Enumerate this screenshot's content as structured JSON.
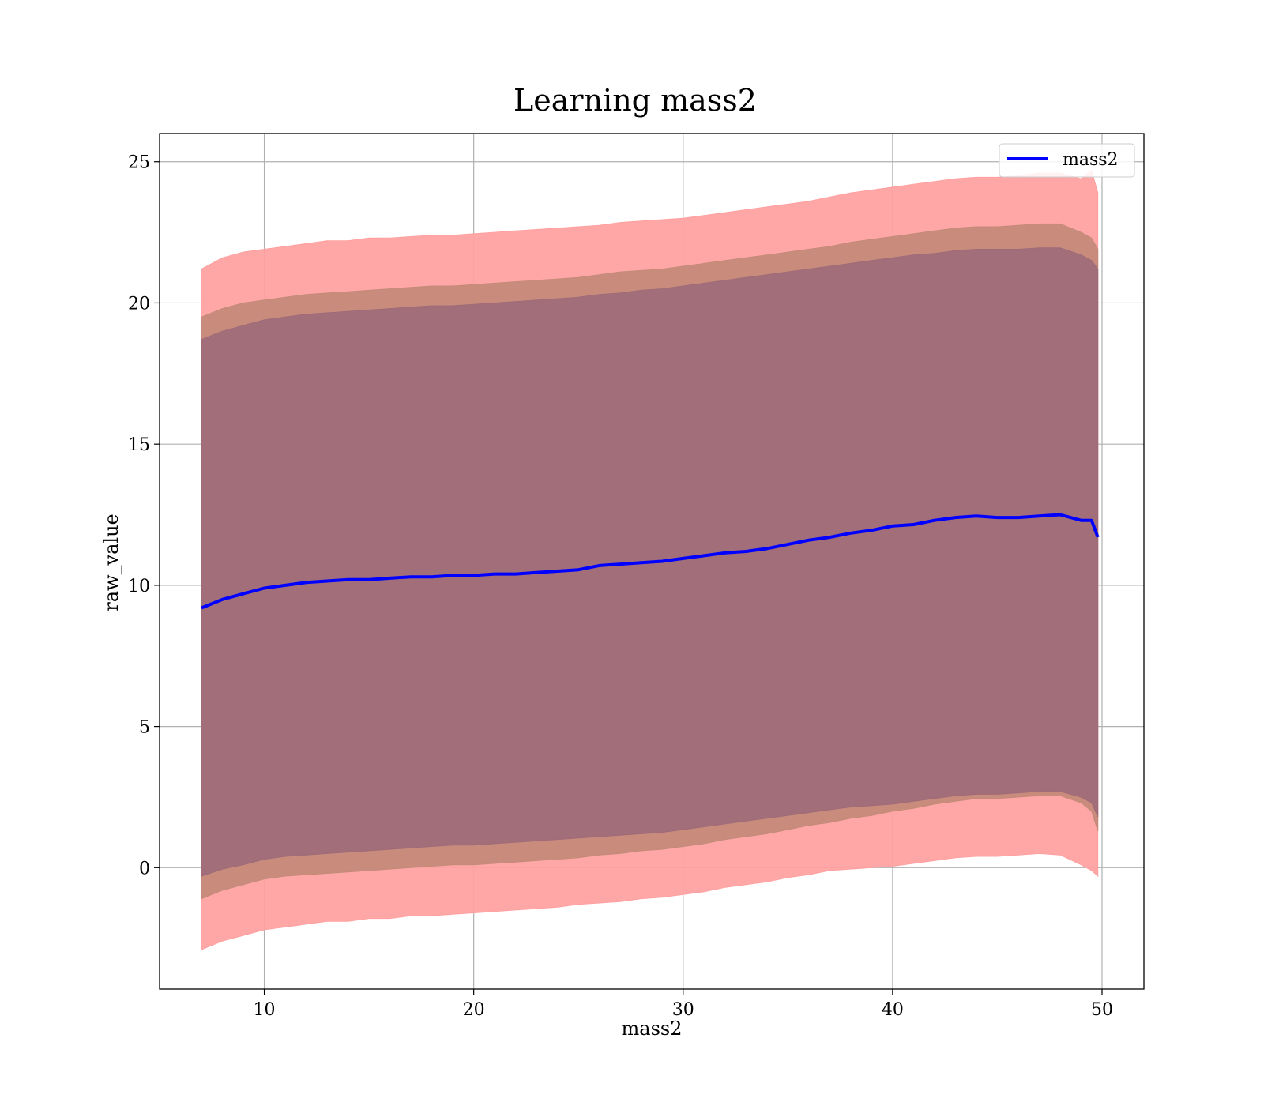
{
  "chart_data": {
    "type": "line",
    "title": "Learning mass2",
    "xlabel": "mass2",
    "ylabel": "raw_value",
    "xlim": [
      5,
      52
    ],
    "ylim": [
      -4.3,
      26
    ],
    "xticks": [
      10,
      20,
      30,
      40,
      50
    ],
    "yticks": [
      0,
      5,
      10,
      15,
      20,
      25
    ],
    "grid": true,
    "legend_position": "top-right",
    "colors": {
      "line": "#0000ff",
      "outer_band": "#ffa0a0",
      "middle_band": "#c48a78",
      "inner_band": "#9e6b78"
    },
    "series": [
      {
        "name": "mass2",
        "x": [
          7,
          8,
          9,
          10,
          11,
          12,
          13,
          14,
          15,
          16,
          17,
          18,
          19,
          20,
          21,
          22,
          23,
          24,
          25,
          26,
          27,
          28,
          29,
          30,
          31,
          32,
          33,
          34,
          35,
          36,
          37,
          38,
          39,
          40,
          41,
          42,
          43,
          44,
          45,
          46,
          47,
          48,
          49,
          49.5,
          49.8
        ],
        "y": [
          9.2,
          9.5,
          9.7,
          9.9,
          10.0,
          10.1,
          10.15,
          10.2,
          10.2,
          10.25,
          10.3,
          10.3,
          10.35,
          10.35,
          10.4,
          10.4,
          10.45,
          10.5,
          10.55,
          10.7,
          10.75,
          10.8,
          10.85,
          10.95,
          11.05,
          11.15,
          11.2,
          11.3,
          11.45,
          11.6,
          11.7,
          11.85,
          11.95,
          12.1,
          12.15,
          12.3,
          12.4,
          12.45,
          12.4,
          12.4,
          12.45,
          12.5,
          12.3,
          12.3,
          11.7
        ]
      }
    ],
    "bands": [
      {
        "role": "outer",
        "x": [
          7,
          8,
          9,
          10,
          11,
          12,
          13,
          14,
          15,
          16,
          17,
          18,
          19,
          20,
          21,
          22,
          23,
          24,
          25,
          26,
          27,
          28,
          29,
          30,
          31,
          32,
          33,
          34,
          35,
          36,
          37,
          38,
          39,
          40,
          41,
          42,
          43,
          44,
          45,
          46,
          47,
          48,
          49,
          49.5,
          49.8
        ],
        "lower": [
          -2.9,
          -2.6,
          -2.4,
          -2.2,
          -2.1,
          -2.0,
          -1.9,
          -1.9,
          -1.8,
          -1.8,
          -1.7,
          -1.7,
          -1.65,
          -1.6,
          -1.55,
          -1.5,
          -1.45,
          -1.4,
          -1.3,
          -1.25,
          -1.2,
          -1.1,
          -1.05,
          -0.95,
          -0.85,
          -0.7,
          -0.6,
          -0.5,
          -0.35,
          -0.25,
          -0.1,
          -0.05,
          0.0,
          0.05,
          0.15,
          0.25,
          0.35,
          0.4,
          0.4,
          0.45,
          0.5,
          0.45,
          0.1,
          -0.1,
          -0.3
        ],
        "upper": [
          21.2,
          21.6,
          21.8,
          21.9,
          22.0,
          22.1,
          22.2,
          22.2,
          22.3,
          22.3,
          22.35,
          22.4,
          22.4,
          22.45,
          22.5,
          22.55,
          22.6,
          22.65,
          22.7,
          22.75,
          22.85,
          22.9,
          22.95,
          23.0,
          23.1,
          23.2,
          23.3,
          23.4,
          23.5,
          23.6,
          23.75,
          23.9,
          24.0,
          24.1,
          24.2,
          24.3,
          24.4,
          24.45,
          24.45,
          24.5,
          24.6,
          24.6,
          24.4,
          24.7,
          23.9
        ]
      },
      {
        "role": "middle",
        "x": [
          7,
          8,
          9,
          10,
          11,
          12,
          13,
          14,
          15,
          16,
          17,
          18,
          19,
          20,
          21,
          22,
          23,
          24,
          25,
          26,
          27,
          28,
          29,
          30,
          31,
          32,
          33,
          34,
          35,
          36,
          37,
          38,
          39,
          40,
          41,
          42,
          43,
          44,
          45,
          46,
          47,
          48,
          49,
          49.5,
          49.8
        ],
        "lower": [
          -1.1,
          -0.8,
          -0.6,
          -0.4,
          -0.3,
          -0.25,
          -0.2,
          -0.15,
          -0.1,
          -0.05,
          0.0,
          0.05,
          0.1,
          0.1,
          0.15,
          0.2,
          0.25,
          0.3,
          0.35,
          0.45,
          0.5,
          0.6,
          0.65,
          0.75,
          0.85,
          1.0,
          1.1,
          1.2,
          1.35,
          1.5,
          1.6,
          1.75,
          1.85,
          2.0,
          2.1,
          2.25,
          2.35,
          2.45,
          2.45,
          2.5,
          2.55,
          2.55,
          2.3,
          2.0,
          1.3
        ],
        "upper": [
          19.5,
          19.8,
          20.0,
          20.1,
          20.2,
          20.3,
          20.35,
          20.4,
          20.45,
          20.5,
          20.55,
          20.6,
          20.6,
          20.65,
          20.7,
          20.75,
          20.8,
          20.85,
          20.9,
          21.0,
          21.1,
          21.15,
          21.2,
          21.3,
          21.4,
          21.5,
          21.6,
          21.7,
          21.8,
          21.9,
          22.0,
          22.15,
          22.25,
          22.35,
          22.45,
          22.55,
          22.65,
          22.7,
          22.7,
          22.75,
          22.8,
          22.8,
          22.5,
          22.3,
          21.9
        ]
      },
      {
        "role": "inner",
        "x": [
          7,
          8,
          9,
          10,
          11,
          12,
          13,
          14,
          15,
          16,
          17,
          18,
          19,
          20,
          21,
          22,
          23,
          24,
          25,
          26,
          27,
          28,
          29,
          30,
          31,
          32,
          33,
          34,
          35,
          36,
          37,
          38,
          39,
          40,
          41,
          42,
          43,
          44,
          45,
          46,
          47,
          48,
          49,
          49.5,
          49.8
        ],
        "lower": [
          -0.3,
          -0.05,
          0.1,
          0.3,
          0.4,
          0.45,
          0.5,
          0.55,
          0.6,
          0.65,
          0.7,
          0.75,
          0.8,
          0.8,
          0.85,
          0.9,
          0.95,
          1.0,
          1.05,
          1.1,
          1.15,
          1.2,
          1.25,
          1.35,
          1.45,
          1.55,
          1.65,
          1.75,
          1.85,
          1.95,
          2.05,
          2.15,
          2.2,
          2.25,
          2.35,
          2.45,
          2.55,
          2.6,
          2.6,
          2.65,
          2.7,
          2.7,
          2.5,
          2.3,
          1.8
        ],
        "upper": [
          18.7,
          19.0,
          19.2,
          19.4,
          19.5,
          19.6,
          19.65,
          19.7,
          19.75,
          19.8,
          19.85,
          19.9,
          19.9,
          19.95,
          20.0,
          20.05,
          20.1,
          20.15,
          20.2,
          20.3,
          20.35,
          20.45,
          20.5,
          20.6,
          20.7,
          20.8,
          20.9,
          21.0,
          21.1,
          21.2,
          21.3,
          21.4,
          21.5,
          21.6,
          21.7,
          21.75,
          21.85,
          21.9,
          21.9,
          21.9,
          21.95,
          21.95,
          21.7,
          21.5,
          21.2
        ]
      }
    ]
  }
}
